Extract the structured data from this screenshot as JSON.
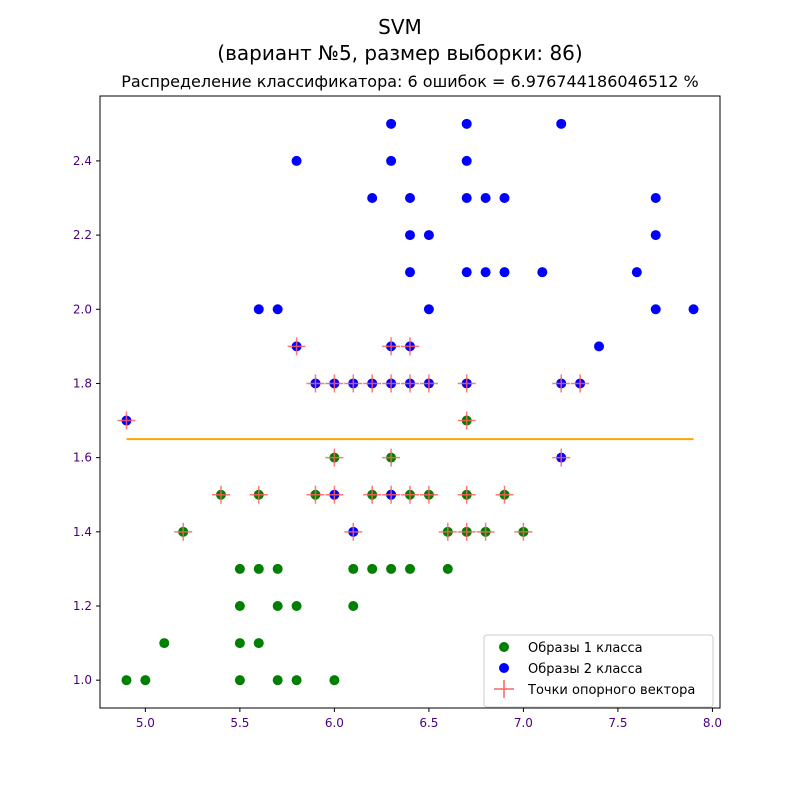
{
  "chart_data": {
    "type": "scatter",
    "title_line1": "SVM",
    "title_line2": "(вариант №5, размер выборки: 86)",
    "subtitle": "Распределение классификатора: 6 ошибок = 6.976744186046512 %",
    "xlim": [
      4.76,
      8.04
    ],
    "ylim": [
      0.925,
      2.575
    ],
    "x_ticks": [
      "5.0",
      "5.5",
      "6.0",
      "6.5",
      "7.0",
      "7.5",
      "8.0"
    ],
    "y_ticks": [
      "1.0",
      "1.2",
      "1.4",
      "1.6",
      "1.8",
      "2.0",
      "2.2",
      "2.4"
    ],
    "tick_label_color": "#4b0082",
    "grid": false,
    "legend_position": "lower-right",
    "series": [
      {
        "name": "Образы 1 класса",
        "color": "#008000",
        "marker": "circle",
        "points": [
          [
            4.9,
            1.0
          ],
          [
            5.0,
            1.0
          ],
          [
            5.5,
            1.0
          ],
          [
            5.7,
            1.0
          ],
          [
            5.8,
            1.0
          ],
          [
            6.0,
            1.0
          ],
          [
            5.1,
            1.1
          ],
          [
            5.5,
            1.1
          ],
          [
            5.6,
            1.1
          ],
          [
            5.5,
            1.2
          ],
          [
            5.7,
            1.2
          ],
          [
            5.8,
            1.2
          ],
          [
            6.1,
            1.2
          ],
          [
            5.5,
            1.3
          ],
          [
            5.6,
            1.3
          ],
          [
            5.7,
            1.3
          ],
          [
            6.1,
            1.3
          ],
          [
            6.2,
            1.3
          ],
          [
            6.3,
            1.3
          ],
          [
            6.4,
            1.3
          ],
          [
            6.6,
            1.3
          ],
          [
            5.2,
            1.4
          ],
          [
            6.6,
            1.4
          ],
          [
            6.7,
            1.4
          ],
          [
            6.8,
            1.4
          ],
          [
            7.0,
            1.4
          ],
          [
            5.4,
            1.5
          ],
          [
            5.6,
            1.5
          ],
          [
            5.9,
            1.5
          ],
          [
            6.2,
            1.5
          ],
          [
            6.3,
            1.5
          ],
          [
            6.4,
            1.5
          ],
          [
            6.5,
            1.5
          ],
          [
            6.7,
            1.5
          ],
          [
            6.9,
            1.5
          ],
          [
            6.0,
            1.6
          ],
          [
            6.3,
            1.6
          ],
          [
            6.7,
            1.7
          ]
        ]
      },
      {
        "name": "Образы 2 класса",
        "color": "#0000ff",
        "marker": "circle",
        "points": [
          [
            6.1,
            1.4
          ],
          [
            6.0,
            1.5
          ],
          [
            6.3,
            1.5
          ],
          [
            7.2,
            1.6
          ],
          [
            4.9,
            1.7
          ],
          [
            5.9,
            1.8
          ],
          [
            6.0,
            1.8
          ],
          [
            6.1,
            1.8
          ],
          [
            6.2,
            1.8
          ],
          [
            6.3,
            1.8
          ],
          [
            6.4,
            1.8
          ],
          [
            6.5,
            1.8
          ],
          [
            6.7,
            1.8
          ],
          [
            7.2,
            1.8
          ],
          [
            7.3,
            1.8
          ],
          [
            5.8,
            1.9
          ],
          [
            6.3,
            1.9
          ],
          [
            6.4,
            1.9
          ],
          [
            7.4,
            1.9
          ],
          [
            5.6,
            2.0
          ],
          [
            5.7,
            2.0
          ],
          [
            6.5,
            2.0
          ],
          [
            7.7,
            2.0
          ],
          [
            7.9,
            2.0
          ],
          [
            6.4,
            2.1
          ],
          [
            6.7,
            2.1
          ],
          [
            6.8,
            2.1
          ],
          [
            6.9,
            2.1
          ],
          [
            7.1,
            2.1
          ],
          [
            7.6,
            2.1
          ],
          [
            6.4,
            2.2
          ],
          [
            6.5,
            2.2
          ],
          [
            7.7,
            2.2
          ],
          [
            6.2,
            2.3
          ],
          [
            6.4,
            2.3
          ],
          [
            6.7,
            2.3
          ],
          [
            6.8,
            2.3
          ],
          [
            6.9,
            2.3
          ],
          [
            7.7,
            2.3
          ],
          [
            5.8,
            2.4
          ],
          [
            6.3,
            2.4
          ],
          [
            6.7,
            2.4
          ],
          [
            6.3,
            2.5
          ],
          [
            6.7,
            2.5
          ],
          [
            7.2,
            2.5
          ]
        ]
      },
      {
        "name": "Точки опорного вектора",
        "color": "#ff6060",
        "marker": "plus",
        "points": [
          [
            5.2,
            1.4
          ],
          [
            6.1,
            1.4
          ],
          [
            6.6,
            1.4
          ],
          [
            6.7,
            1.4
          ],
          [
            6.8,
            1.4
          ],
          [
            7.0,
            1.4
          ],
          [
            5.4,
            1.5
          ],
          [
            5.6,
            1.5
          ],
          [
            5.9,
            1.5
          ],
          [
            6.0,
            1.5
          ],
          [
            6.2,
            1.5
          ],
          [
            6.3,
            1.5
          ],
          [
            6.4,
            1.5
          ],
          [
            6.5,
            1.5
          ],
          [
            6.7,
            1.5
          ],
          [
            6.9,
            1.5
          ],
          [
            6.0,
            1.6
          ],
          [
            6.3,
            1.6
          ],
          [
            7.2,
            1.6
          ],
          [
            4.9,
            1.7
          ],
          [
            6.7,
            1.7
          ],
          [
            5.9,
            1.8
          ],
          [
            6.0,
            1.8
          ],
          [
            6.1,
            1.8
          ],
          [
            6.2,
            1.8
          ],
          [
            6.3,
            1.8
          ],
          [
            6.4,
            1.8
          ],
          [
            6.5,
            1.8
          ],
          [
            6.7,
            1.8
          ],
          [
            7.2,
            1.8
          ],
          [
            7.3,
            1.8
          ],
          [
            5.8,
            1.9
          ],
          [
            6.3,
            1.9
          ],
          [
            6.4,
            1.9
          ]
        ]
      }
    ],
    "decision_line": {
      "color": "#ffa500",
      "x": [
        4.9,
        7.9
      ],
      "y": [
        1.65,
        1.65
      ]
    }
  }
}
